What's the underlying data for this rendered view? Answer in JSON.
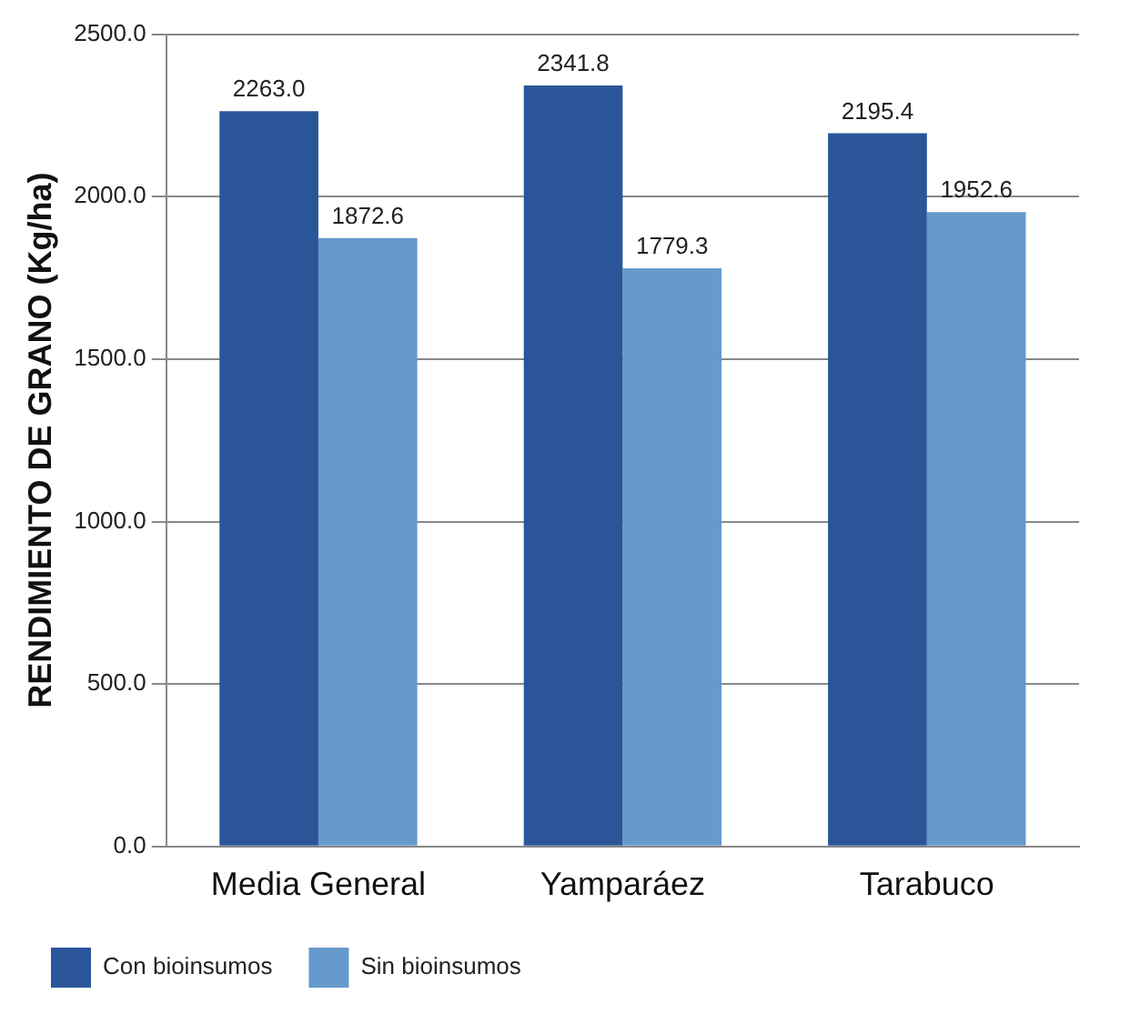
{
  "chart_data": {
    "type": "bar",
    "ylabel": "RENDIMIENTO DE GRANO (Kg/ha)",
    "categories": [
      "Media General",
      "Yamparáez",
      "Tarabuco"
    ],
    "series": [
      {
        "name": "Con bioinsumos",
        "color": "#2a5699",
        "values": [
          2263.0,
          2341.8,
          2195.4
        ],
        "value_labels": [
          "2263.0",
          "2341.8",
          "2195.4"
        ]
      },
      {
        "name": "Sin bioinsumos",
        "color": "#6699cc",
        "values": [
          1872.6,
          1779.3,
          1952.6
        ],
        "value_labels": [
          "1872.6",
          "1779.3",
          "1952.6"
        ]
      }
    ],
    "ylim": [
      0,
      2500
    ],
    "yticks": [
      {
        "value": 0,
        "label": "0.0"
      },
      {
        "value": 500,
        "label": "500.0"
      },
      {
        "value": 1000,
        "label": "1000.0"
      },
      {
        "value": 1500,
        "label": "1500.0"
      },
      {
        "value": 2000,
        "label": "2000.0"
      },
      {
        "value": 2500,
        "label": "2500.0"
      }
    ],
    "grid": "y",
    "legend": "bottom"
  }
}
